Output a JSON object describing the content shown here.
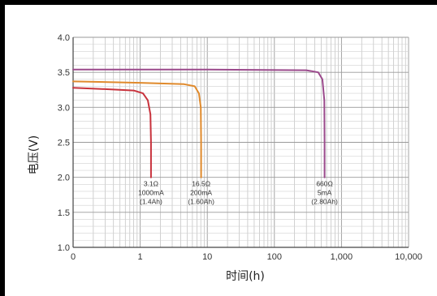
{
  "chart_data": {
    "type": "line",
    "title": "",
    "xlabel": "时间(h)",
    "ylabel": "电压(V)",
    "x_scale": "log",
    "xlim": [
      0.1,
      10000
    ],
    "ylim": [
      1.0,
      4.0
    ],
    "x_tick_labels": [
      "0",
      "1",
      "10",
      "100",
      "1,000",
      "10,000"
    ],
    "x_tick_values": [
      0.1,
      1,
      10,
      100,
      1000,
      10000
    ],
    "y_tick_labels": [
      "1.0",
      "1.5",
      "2.0",
      "2.5",
      "3.0",
      "3.5",
      "4.0"
    ],
    "y_tick_values": [
      1.0,
      1.5,
      2.0,
      2.5,
      3.0,
      3.5,
      4.0
    ],
    "grid": true,
    "legend": "none",
    "series": [
      {
        "color": "#c8323c",
        "x": [
          0.1,
          0.3,
          0.8,
          1.1,
          1.3,
          1.42,
          1.45,
          1.45
        ],
        "y": [
          3.28,
          3.26,
          3.24,
          3.2,
          3.1,
          2.9,
          2.5,
          2.0
        ],
        "annotation": [
          "3.1Ω",
          "1000mA",
          "(1.4Ah)"
        ]
      },
      {
        "color": "#e08a2c",
        "x": [
          0.1,
          1,
          4.5,
          6.5,
          7.5,
          8.0,
          8.1,
          8.1
        ],
        "y": [
          3.37,
          3.35,
          3.33,
          3.3,
          3.2,
          3.0,
          2.5,
          2.0
        ],
        "annotation": [
          "16.5Ω",
          "200mA",
          "(1.60Ah)"
        ]
      },
      {
        "color": "#9b4a8c",
        "x": [
          0.1,
          10,
          300,
          450,
          520,
          555,
          560,
          560
        ],
        "y": [
          3.54,
          3.54,
          3.53,
          3.5,
          3.4,
          3.1,
          2.5,
          2.0
        ],
        "annotation": [
          "660Ω",
          "5mA",
          "(2.80Ah)"
        ]
      }
    ]
  }
}
